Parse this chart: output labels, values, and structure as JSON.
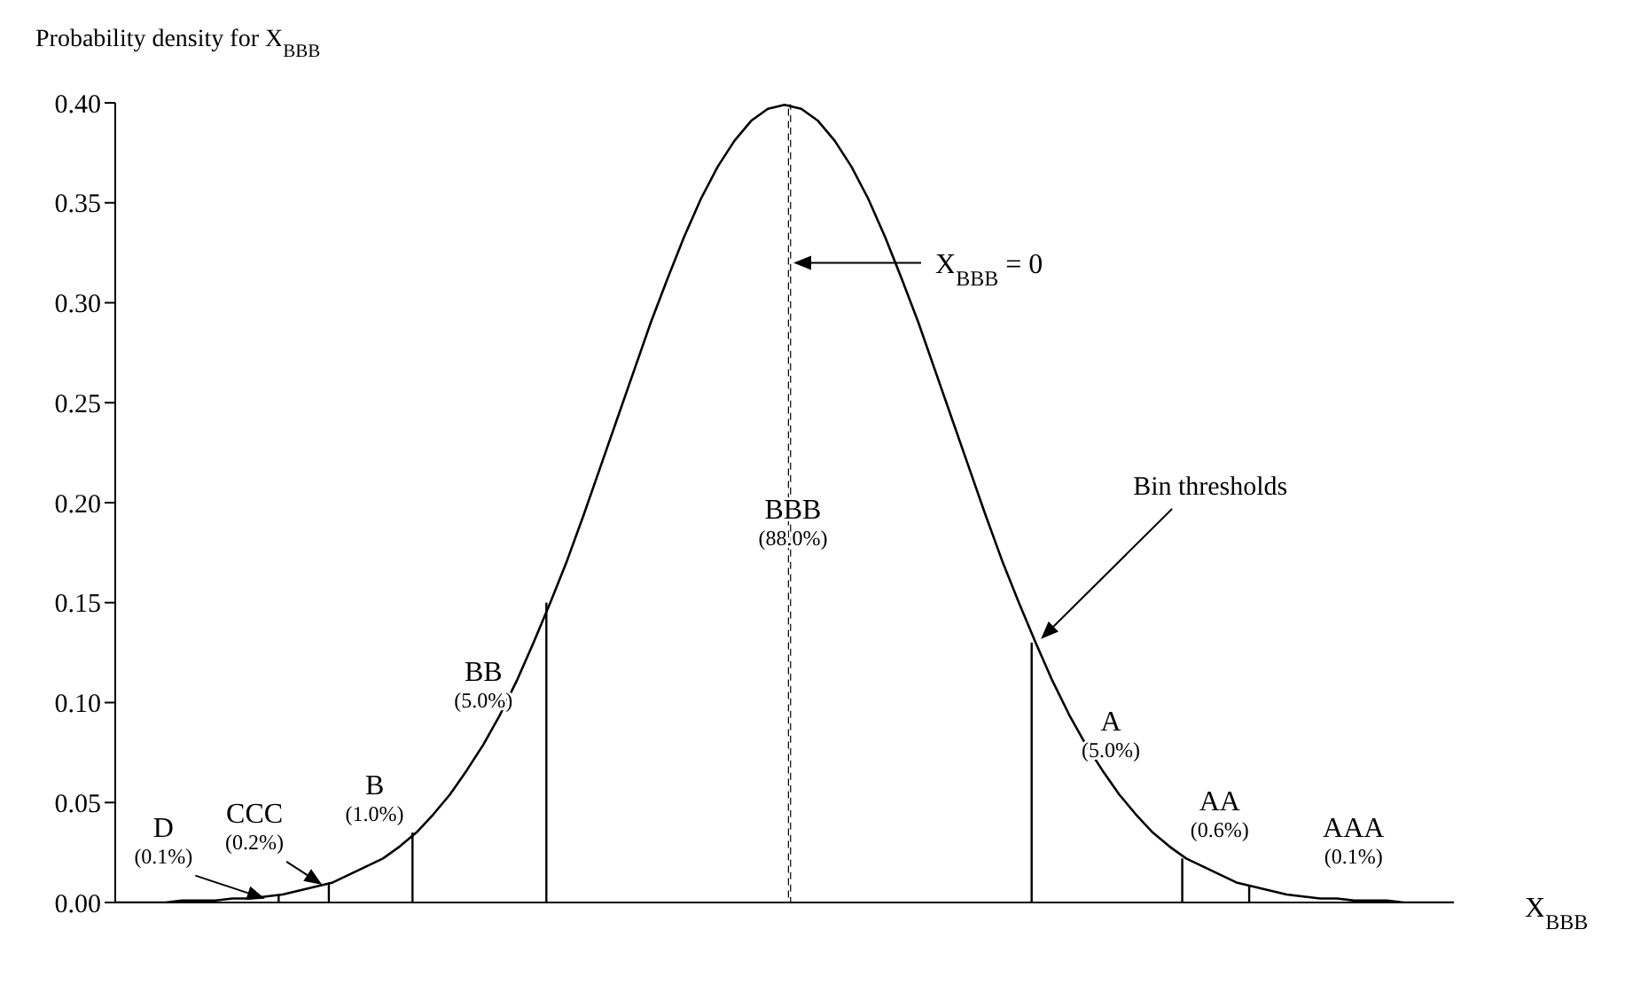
{
  "chart_data": {
    "type": "line",
    "ylabel": "Probability density for X$_{BBB}$",
    "xlabel": "X$_{BBB}$",
    "categories": [
      null,
      null,
      null,
      null,
      null,
      null,
      null,
      null,
      null,
      null,
      null,
      null,
      null,
      null,
      null,
      null,
      null,
      null,
      null,
      null,
      null,
      null,
      null,
      null,
      null,
      null,
      null,
      null,
      null,
      null,
      null,
      null,
      null,
      null,
      null,
      null,
      null,
      null,
      null,
      null,
      null,
      null,
      null,
      null,
      null,
      null,
      null,
      null,
      null,
      null,
      null,
      null,
      null,
      null,
      null,
      null,
      null,
      null,
      null,
      null,
      null,
      null,
      null,
      null,
      null,
      null,
      null,
      null,
      null,
      null,
      null,
      null,
      null,
      null,
      null,
      null,
      null,
      null,
      null,
      null,
      null
    ],
    "series": [
      {
        "color": "#000000",
        "values": [
          0.0,
          0.0,
          0.0,
          0.0,
          0.001,
          0.001,
          0.001,
          0.002,
          0.002,
          0.003,
          0.004,
          0.006,
          0.008,
          0.01,
          0.014,
          0.018,
          0.022,
          0.028,
          0.035,
          0.044,
          0.054,
          0.066,
          0.079,
          0.094,
          0.111,
          0.13,
          0.15,
          0.171,
          0.194,
          0.218,
          0.242,
          0.266,
          0.29,
          0.312,
          0.333,
          0.352,
          0.368,
          0.381,
          0.391,
          0.397,
          0.399,
          0.397,
          0.391,
          0.381,
          0.368,
          0.352,
          0.333,
          0.312,
          0.29,
          0.266,
          0.242,
          0.218,
          0.194,
          0.171,
          0.15,
          0.13,
          0.111,
          0.094,
          0.079,
          0.066,
          0.054,
          0.044,
          0.035,
          0.028,
          0.022,
          0.018,
          0.014,
          0.01,
          0.008,
          0.006,
          0.004,
          0.003,
          0.002,
          0.002,
          0.001,
          0.001,
          0.001,
          0.0,
          0.0,
          0.0,
          0.0
        ]
      },
      {
        "type": "bar",
        "color": "#000000",
        "line_style": "solid",
        "values": [
          null,
          null,
          null,
          null,
          null,
          null,
          null,
          null,
          null,
          null,
          0.004,
          null,
          null,
          0.01,
          null,
          null,
          null,
          null,
          0.035,
          null,
          null,
          null,
          null,
          null,
          null,
          null,
          0.15,
          null,
          null,
          null,
          null,
          null,
          null,
          null,
          null,
          null,
          null,
          null,
          null,
          null,
          null,
          null,
          null,
          null,
          null,
          null,
          null,
          null,
          null,
          null,
          null,
          null,
          null,
          null,
          null,
          0.13,
          null,
          null,
          null,
          null,
          null,
          null,
          null,
          null,
          0.022,
          null,
          null,
          null,
          0.008,
          null,
          null,
          null,
          null,
          null,
          null,
          null,
          null,
          null,
          null,
          null,
          null
        ]
      },
      {
        "type": "bar",
        "color": "#000000",
        "line_style": "dashed",
        "values": [
          null,
          null,
          null,
          null,
          null,
          null,
          null,
          null,
          null,
          null,
          null,
          null,
          null,
          null,
          null,
          null,
          null,
          null,
          null,
          null,
          null,
          null,
          null,
          null,
          null,
          null,
          null,
          null,
          null,
          null,
          null,
          null,
          null,
          null,
          null,
          null,
          null,
          null,
          null,
          null,
          0.399,
          null,
          null,
          null,
          null,
          null,
          null,
          null,
          null,
          null,
          null,
          null,
          null,
          null,
          null,
          null,
          null,
          null,
          null,
          null,
          null,
          null,
          null,
          null,
          null,
          null,
          null,
          null,
          null,
          null,
          null,
          null,
          null,
          null,
          null,
          null,
          null,
          null,
          null,
          null,
          null
        ]
      }
    ],
    "ylim": [
      0,
      0.4
    ],
    "yticks": [
      {
        "value": 0,
        "label": "0.00"
      },
      {
        "value": 0.05,
        "label": "0.05"
      },
      {
        "value": 0.1,
        "label": "0.10"
      },
      {
        "value": 0.15,
        "label": "0.15"
      },
      {
        "value": 0.2,
        "label": "0.20"
      },
      {
        "value": 0.25,
        "label": "0.25"
      },
      {
        "value": 0.3,
        "label": "0.30"
      },
      {
        "value": 0.35,
        "label": "0.35"
      },
      {
        "value": 0.4,
        "label": "0.40"
      }
    ],
    "tick_labels": "y",
    "marker": "none",
    "annotations": [
      "D (0.1%)",
      "CCC (0.2%)",
      "B (1.0%)",
      "BB (5.0%)",
      "BBB (88.0%)",
      "A (5.0%)",
      "AA (0.6%)",
      "AAA (0.1%)",
      "X$_{BBB}$ = 0",
      "Bin thresholds"
    ]
  }
}
